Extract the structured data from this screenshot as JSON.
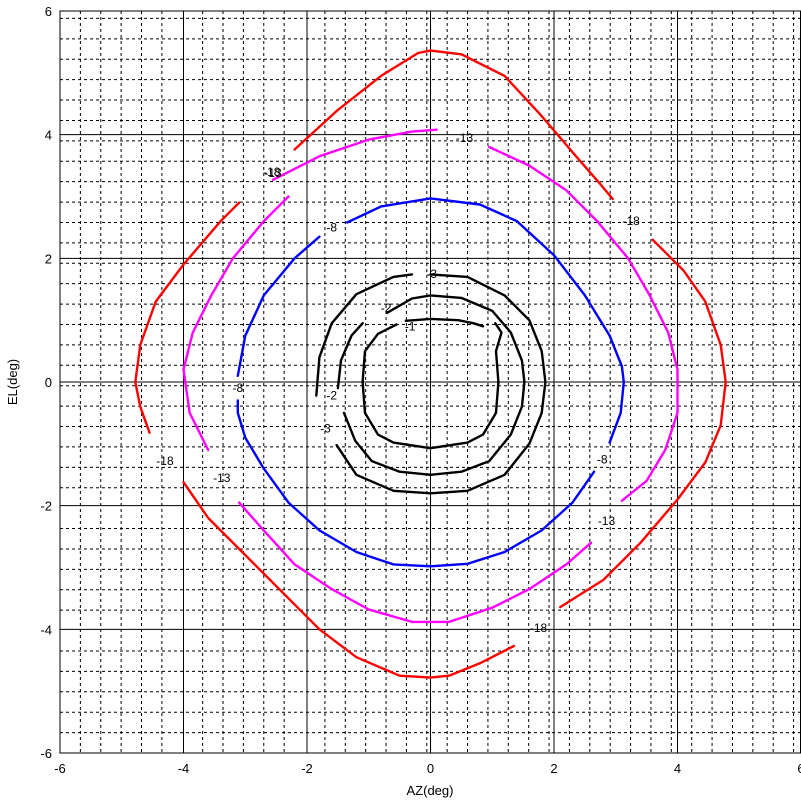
{
  "chart_data": {
    "type": "contour",
    "xlabel": "AZ(deg)",
    "ylabel": "EL(deg)",
    "xlim": [
      -6,
      6
    ],
    "ylim": [
      -6,
      6
    ],
    "x_ticks": [
      "-6",
      "-4",
      "-2",
      "0",
      "2",
      "4",
      "6"
    ],
    "y_ticks": [
      "-6",
      "-4",
      "-2",
      "0",
      "2",
      "4",
      "6"
    ],
    "major_grid": "solid",
    "minor_grid": "dashed",
    "minor_step": 0.33,
    "levels": [
      {
        "value": -1,
        "color": "#000000",
        "label": "-1",
        "segments": [
          [
            [
              1.05,
              0.95
            ],
            [
              1.15,
              0.8
            ],
            [
              1.06,
              0.5
            ],
            [
              1.1,
              0.0
            ],
            [
              1.06,
              -0.5
            ],
            [
              0.85,
              -0.85
            ],
            [
              0.6,
              -0.98
            ],
            [
              0.0,
              -1.07
            ],
            [
              -0.6,
              -0.98
            ],
            [
              -0.85,
              -0.85
            ],
            [
              -1.06,
              -0.5
            ],
            [
              -1.1,
              0.0
            ],
            [
              -1.06,
              0.5
            ],
            [
              -0.85,
              0.78
            ],
            [
              -0.55,
              0.93
            ]
          ],
          [
            [
              -0.4,
              0.99
            ],
            [
              0.0,
              1.02
            ],
            [
              0.45,
              1.0
            ],
            [
              0.7,
              0.95
            ],
            [
              0.85,
              0.9
            ]
          ]
        ],
        "labels": [
          {
            "text": "-1",
            "x": -0.33,
            "y": 0.9
          }
        ]
      },
      {
        "value": -2,
        "color": "#000000",
        "label": "-2",
        "segments": [
          [
            [
              -0.7,
              1.12
            ],
            [
              -0.3,
              1.35
            ],
            [
              0.0,
              1.4
            ],
            [
              0.5,
              1.36
            ],
            [
              1.0,
              1.15
            ],
            [
              1.3,
              0.8
            ],
            [
              1.48,
              0.35
            ],
            [
              1.52,
              0.0
            ],
            [
              1.48,
              -0.4
            ],
            [
              1.3,
              -0.85
            ],
            [
              0.95,
              -1.28
            ],
            [
              0.5,
              -1.45
            ],
            [
              0.0,
              -1.5
            ],
            [
              -0.5,
              -1.45
            ],
            [
              -0.95,
              -1.28
            ],
            [
              -1.22,
              -0.95
            ],
            [
              -1.4,
              -0.5
            ]
          ],
          [
            [
              -1.5,
              -0.1
            ],
            [
              -1.45,
              0.35
            ],
            [
              -1.28,
              0.75
            ],
            [
              -1.1,
              0.95
            ]
          ]
        ],
        "labels": [
          {
            "text": "-2",
            "x": -0.72,
            "y": 1.2
          },
          {
            "text": "-2",
            "x": -1.6,
            "y": -0.22
          }
        ]
      },
      {
        "value": -3,
        "color": "#000000",
        "label": "-3",
        "segments": [
          [
            [
              0.0,
              1.74
            ],
            [
              0.6,
              1.7
            ],
            [
              1.2,
              1.4
            ],
            [
              1.6,
              1.0
            ],
            [
              1.8,
              0.5
            ],
            [
              1.86,
              0.0
            ],
            [
              1.8,
              -0.5
            ],
            [
              1.6,
              -1.0
            ],
            [
              1.2,
              -1.5
            ],
            [
              0.6,
              -1.76
            ],
            [
              0.0,
              -1.8
            ],
            [
              -0.6,
              -1.76
            ],
            [
              -1.2,
              -1.5
            ],
            [
              -1.52,
              -1.02
            ]
          ],
          [
            [
              -1.85,
              -0.22
            ],
            [
              -1.8,
              0.4
            ],
            [
              -1.6,
              0.95
            ],
            [
              -1.2,
              1.42
            ],
            [
              -0.6,
              1.7
            ],
            [
              -0.3,
              1.74
            ]
          ]
        ],
        "labels": [
          {
            "text": "-3",
            "x": -1.7,
            "y": -0.75
          },
          {
            "text": "-3",
            "x": 0.02,
            "y": 1.75
          }
        ]
      },
      {
        "value": -8,
        "color": "#0000ff",
        "label": "-8",
        "segments": [
          [
            [
              -1.35,
              2.58
            ],
            [
              -0.8,
              2.84
            ],
            [
              0.0,
              2.97
            ],
            [
              0.8,
              2.87
            ],
            [
              1.4,
              2.6
            ],
            [
              2.0,
              2.05
            ],
            [
              2.5,
              1.4
            ],
            [
              2.9,
              0.75
            ],
            [
              3.1,
              0.25
            ],
            [
              3.13,
              0.0
            ],
            [
              3.08,
              -0.5
            ],
            [
              2.9,
              -0.98
            ]
          ],
          [
            [
              2.65,
              -1.45
            ],
            [
              2.3,
              -1.95
            ],
            [
              1.8,
              -2.4
            ],
            [
              1.2,
              -2.75
            ],
            [
              0.6,
              -2.94
            ],
            [
              0.0,
              -2.98
            ],
            [
              -0.6,
              -2.95
            ],
            [
              -1.2,
              -2.75
            ],
            [
              -1.8,
              -2.4
            ],
            [
              -2.3,
              -1.95
            ],
            [
              -2.7,
              -1.4
            ],
            [
              -3.0,
              -0.9
            ],
            [
              -3.12,
              -0.5
            ],
            [
              -3.12,
              -0.3
            ]
          ],
          [
            [
              -3.12,
              0.1
            ],
            [
              -3.0,
              0.75
            ],
            [
              -2.7,
              1.4
            ],
            [
              -2.2,
              2.0
            ],
            [
              -1.8,
              2.35
            ]
          ]
        ],
        "labels": [
          {
            "text": "-8",
            "x": -1.6,
            "y": 2.5
          },
          {
            "text": "-8",
            "x": -3.12,
            "y": -0.1
          },
          {
            "text": "-8",
            "x": 2.78,
            "y": -1.25
          }
        ]
      },
      {
        "value": -13,
        "color": "#ff00ff",
        "label": "-13",
        "segments": [
          [
            [
              -2.55,
              3.27
            ],
            [
              -1.8,
              3.65
            ],
            [
              -1.0,
              3.92
            ],
            [
              -0.3,
              4.05
            ],
            [
              0.1,
              4.08
            ]
          ],
          [
            [
              0.95,
              3.8
            ],
            [
              1.6,
              3.5
            ],
            [
              2.2,
              3.1
            ],
            [
              2.7,
              2.6
            ],
            [
              3.2,
              2.0
            ],
            [
              3.55,
              1.4
            ],
            [
              3.85,
              0.8
            ],
            [
              4.0,
              0.2
            ],
            [
              4.0,
              -0.5
            ],
            [
              3.8,
              -1.1
            ],
            [
              3.5,
              -1.6
            ],
            [
              3.1,
              -1.92
            ]
          ],
          [
            [
              2.6,
              -2.6
            ],
            [
              2.2,
              -2.95
            ],
            [
              1.6,
              -3.35
            ],
            [
              1.0,
              -3.65
            ],
            [
              0.3,
              -3.88
            ],
            [
              -0.3,
              -3.88
            ],
            [
              -1.0,
              -3.68
            ],
            [
              -1.6,
              -3.35
            ],
            [
              -2.2,
              -2.95
            ],
            [
              -2.7,
              -2.4
            ],
            [
              -3.1,
              -1.95
            ]
          ],
          [
            [
              -3.6,
              -1.1
            ],
            [
              -3.9,
              -0.5
            ],
            [
              -4.0,
              0.2
            ],
            [
              -3.85,
              0.8
            ],
            [
              -3.55,
              1.4
            ],
            [
              -3.2,
              2.0
            ],
            [
              -2.7,
              2.6
            ],
            [
              -2.3,
              3.0
            ]
          ]
        ],
        "labels": [
          {
            "text": "-13",
            "x": -2.55,
            "y": 3.38
          },
          {
            "text": "-13",
            "x": 0.55,
            "y": 3.95
          },
          {
            "text": "-13",
            "x": -3.38,
            "y": -1.55
          },
          {
            "text": "-13",
            "x": 2.85,
            "y": -2.25
          }
        ]
      },
      {
        "value": -18,
        "color": "#ff0000",
        "label": "-18",
        "segments": [
          [
            [
              -2.2,
              3.76
            ],
            [
              -1.5,
              4.4
            ],
            [
              -0.8,
              4.95
            ],
            [
              -0.2,
              5.32
            ],
            [
              0.0,
              5.36
            ],
            [
              0.5,
              5.3
            ],
            [
              1.2,
              4.95
            ],
            [
              1.8,
              4.3
            ],
            [
              2.4,
              3.6
            ],
            [
              2.75,
              3.2
            ],
            [
              2.95,
              2.96
            ]
          ],
          [
            [
              3.6,
              2.3
            ],
            [
              4.1,
              1.8
            ],
            [
              4.45,
              1.3
            ],
            [
              4.7,
              0.6
            ],
            [
              4.78,
              0.0
            ],
            [
              4.7,
              -0.7
            ],
            [
              4.45,
              -1.3
            ],
            [
              4.0,
              -1.9
            ],
            [
              3.4,
              -2.6
            ],
            [
              2.8,
              -3.2
            ],
            [
              2.1,
              -3.64
            ]
          ],
          [
            [
              1.35,
              -4.27
            ],
            [
              0.8,
              -4.55
            ],
            [
              0.3,
              -4.75
            ],
            [
              0.0,
              -4.78
            ],
            [
              -0.5,
              -4.75
            ],
            [
              -1.2,
              -4.45
            ],
            [
              -1.8,
              -4.0
            ],
            [
              -2.4,
              -3.4
            ],
            [
              -3.0,
              -2.8
            ],
            [
              -3.6,
              -2.2
            ],
            [
              -4.0,
              -1.62
            ]
          ],
          [
            [
              -4.55,
              -0.82
            ],
            [
              -4.7,
              -0.4
            ],
            [
              -4.78,
              0.0
            ],
            [
              -4.7,
              0.6
            ],
            [
              -4.45,
              1.3
            ],
            [
              -4.0,
              1.9
            ],
            [
              -3.4,
              2.6
            ],
            [
              -3.1,
              2.9
            ]
          ]
        ],
        "labels": [
          {
            "text": "-18",
            "x": -2.57,
            "y": 3.4
          },
          {
            "text": "-18",
            "x": 3.25,
            "y": 2.6
          },
          {
            "text": "-18",
            "x": -4.3,
            "y": -1.28
          },
          {
            "text": "-18",
            "x": 1.75,
            "y": -3.98
          }
        ]
      }
    ]
  }
}
